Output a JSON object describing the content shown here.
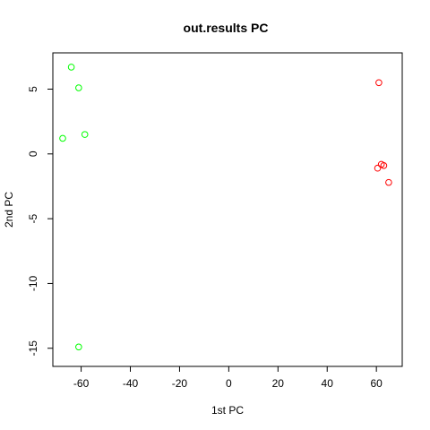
{
  "chart_data": {
    "type": "scatter",
    "title": "out.results PC",
    "xlabel": "1st PC",
    "ylabel": "2nd PC",
    "xlim": [
      -71.5,
      70.5
    ],
    "ylim": [
      -16.4,
      7.8
    ],
    "xticks": [
      -60,
      -40,
      -20,
      0,
      20,
      40,
      60
    ],
    "yticks": [
      -15,
      -10,
      -5,
      0,
      5
    ],
    "grid": false,
    "legend": "none",
    "series": [
      {
        "color": "#00ff00",
        "marker": "open-circle",
        "points": [
          {
            "x": -64,
            "y": 6.7
          },
          {
            "x": -61,
            "y": 5.1
          },
          {
            "x": -67.5,
            "y": 1.2
          },
          {
            "x": -58.5,
            "y": 1.5
          },
          {
            "x": -61,
            "y": -14.9
          }
        ]
      },
      {
        "color": "#ff0000",
        "marker": "open-circle",
        "points": [
          {
            "x": 61,
            "y": 5.5
          },
          {
            "x": 62,
            "y": -0.8
          },
          {
            "x": 63,
            "y": -0.9
          },
          {
            "x": 60.5,
            "y": -1.1
          },
          {
            "x": 65,
            "y": -2.2
          }
        ]
      }
    ]
  }
}
